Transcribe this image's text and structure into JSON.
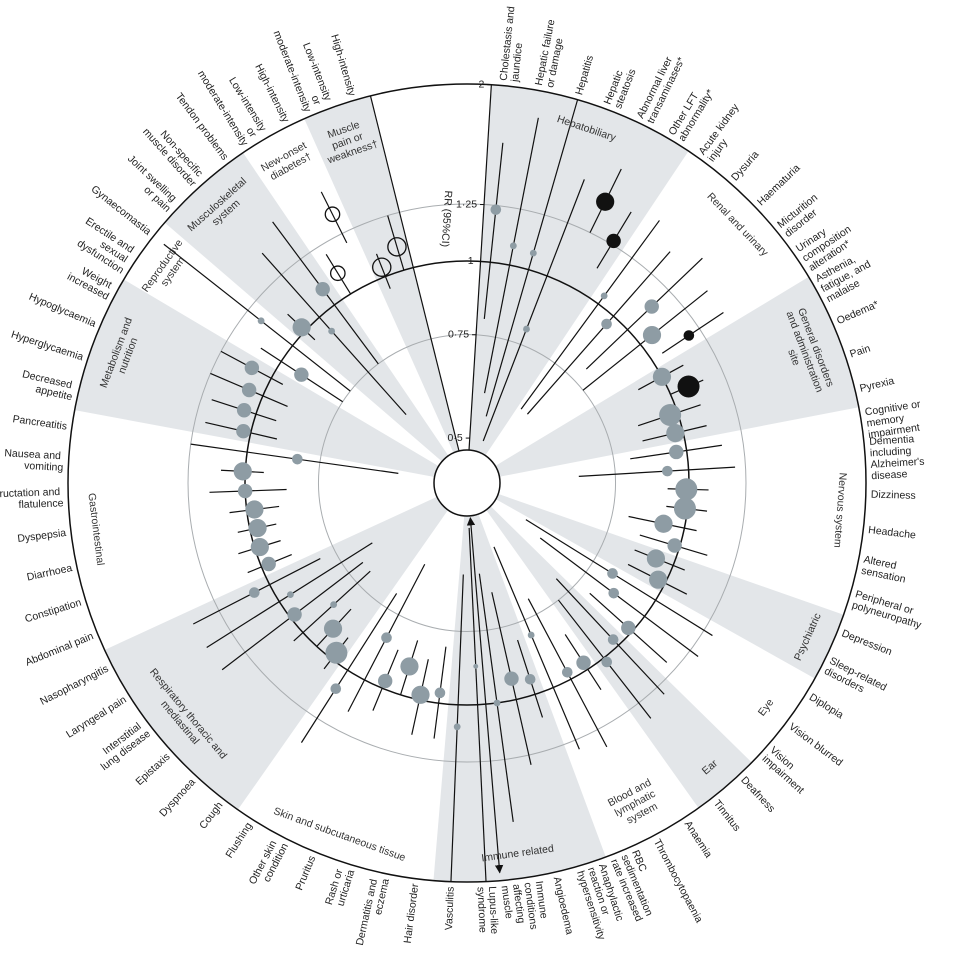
{
  "chart_data": {
    "type": "radial-forest",
    "axis_label": "RR (95%CI)",
    "log_scale": true,
    "rlim": [
      0.5,
      2
    ],
    "rticks": [
      {
        "value": 0.5,
        "label": "0·5"
      },
      {
        "value": 0.75,
        "label": "0·75"
      },
      1,
      {
        "value": 1.25,
        "label": "1·25"
      },
      2
    ],
    "reference_line": 1,
    "shade_color": "#e3e6e9",
    "groups": [
      {
        "name": "Hepatobiliary",
        "shaded": true,
        "outcomes": [
          {
            "name": "Cholestasis and jaundice",
            "rr": 1.23,
            "lower": 0.8,
            "upper": 1.6,
            "weight": 2,
            "color": "#8e9ca4"
          },
          {
            "name": "Hepatic failure or damage",
            "rr": 1.08,
            "lower": 0.6,
            "upper": 1.8,
            "weight": 1,
            "color": "#8e9ca4"
          },
          {
            "name": "Hepatitis",
            "rr": 1.07,
            "lower": 0.55,
            "upper": 2,
            "weight": 1,
            "color": "#8e9ca4"
          },
          {
            "name": "Hepatic steatosis",
            "rr": 0.8,
            "lower": 0.5,
            "upper": 1.5,
            "weight": 1,
            "color": "#8e9ca4"
          },
          {
            "name": "Abnormal liver transaminases*",
            "rr": 1.43,
            "lower": 1.25,
            "upper": 1.65,
            "weight": 4,
            "color": "#111111"
          },
          {
            "name": "Other LFT abnormality*",
            "rr": 1.27,
            "lower": 1.12,
            "upper": 1.45,
            "weight": 3,
            "color": "#111111"
          }
        ]
      },
      {
        "name": "Renal and urinary",
        "shaded": false,
        "outcomes": [
          {
            "name": "Acute kidney injury",
            "rr": 1.04,
            "lower": 0.6,
            "upper": 1.5,
            "weight": 1,
            "color": "#8e9ca4"
          },
          {
            "name": "Dysuria",
            "rr": 0.96,
            "lower": 0.6,
            "upper": 1.4,
            "weight": 2,
            "color": "#8e9ca4"
          },
          {
            "name": "Haematuria",
            "rr": 1.14,
            "lower": 0.8,
            "upper": 1.5,
            "weight": 3,
            "color": "#8e9ca4"
          },
          {
            "name": "Micturition disorder",
            "rr": 1.06,
            "lower": 0.75,
            "upper": 1.4,
            "weight": 4,
            "color": "#8e9ca4"
          },
          {
            "name": "Urinary composition alteration*",
            "rr": 1.19,
            "lower": 1.05,
            "upper": 1.4,
            "weight": 2,
            "color": "#111111"
          }
        ]
      },
      {
        "name": "General disorders and administration site",
        "shaded": true,
        "outcomes": [
          {
            "name": "Asthenia, fatigue, and malaise",
            "rr": 1.0,
            "lower": 0.9,
            "upper": 1.1,
            "weight": 4,
            "color": "#8e9ca4"
          },
          {
            "name": "Oedema*",
            "rr": 1.08,
            "lower": 1.0,
            "upper": 1.15,
            "weight": 5,
            "color": "#111111"
          },
          {
            "name": "Pain",
            "rr": 0.97,
            "lower": 0.85,
            "upper": 1.1,
            "weight": 5,
            "color": "#8e9ca4"
          },
          {
            "name": "Pyrexia",
            "rr": 0.97,
            "lower": 0.85,
            "upper": 1.1,
            "weight": 4,
            "color": "#8e9ca4"
          }
        ]
      },
      {
        "name": "Nervous system",
        "shaded": false,
        "outcomes": [
          {
            "name": "Cognitive or memory impairment",
            "rr": 0.96,
            "lower": 0.8,
            "upper": 1.15,
            "weight": 3,
            "color": "#8e9ca4"
          },
          {
            "name": "Dementia including Alzheimer's disease",
            "rr": 0.92,
            "lower": 0.65,
            "upper": 1.2,
            "weight": 2,
            "color": "#8e9ca4"
          },
          {
            "name": "Dizziness",
            "rr": 0.99,
            "lower": 0.92,
            "upper": 1.08,
            "weight": 5,
            "color": "#8e9ca4"
          },
          {
            "name": "Headache",
            "rr": 0.99,
            "lower": 0.92,
            "upper": 1.08,
            "weight": 5,
            "color": "#8e9ca4"
          },
          {
            "name": "Altered sensation",
            "rr": 0.92,
            "lower": 0.8,
            "upper": 1.05,
            "weight": 4,
            "color": "#8e9ca4"
          },
          {
            "name": "Peripheral or polyneuropathy",
            "rr": 0.98,
            "lower": 0.85,
            "upper": 1.12,
            "weight": 3,
            "color": "#8e9ca4"
          }
        ]
      },
      {
        "name": "Psychiatric",
        "shaded": true,
        "outcomes": [
          {
            "name": "Depression",
            "rr": 0.93,
            "lower": 0.85,
            "upper": 1.05,
            "weight": 4,
            "color": "#8e9ca4"
          },
          {
            "name": "Sleep-related disorders",
            "rr": 0.97,
            "lower": 0.85,
            "upper": 1.1,
            "weight": 4,
            "color": "#8e9ca4"
          }
        ]
      },
      {
        "name": "Eye",
        "shaded": false,
        "outcomes": [
          {
            "name": "Diplopia",
            "rr": 0.82,
            "lower": 0.55,
            "upper": 1.3,
            "weight": 2,
            "color": "#8e9ca4"
          },
          {
            "name": "Vision blurred",
            "rr": 0.86,
            "lower": 0.6,
            "upper": 1.3,
            "weight": 2,
            "color": "#8e9ca4"
          },
          {
            "name": "Vision impairment",
            "rr": 0.98,
            "lower": 0.8,
            "upper": 1.2,
            "weight": 3,
            "color": "#8e9ca4"
          }
        ]
      },
      {
        "name": "Ear",
        "shaded": true,
        "outcomes": [
          {
            "name": "Deafness",
            "rr": 0.97,
            "lower": 0.7,
            "upper": 1.3,
            "weight": 2,
            "color": "#8e9ca4"
          },
          {
            "name": "Tinnitus",
            "rr": 1.02,
            "lower": 0.75,
            "upper": 1.35,
            "weight": 2,
            "color": "#8e9ca4"
          }
        ]
      },
      {
        "name": "Blood and lymphatic system",
        "shaded": false,
        "outcomes": [
          {
            "name": "Anaemia",
            "rr": 0.97,
            "lower": 0.85,
            "upper": 1.1,
            "weight": 3,
            "color": "#8e9ca4"
          },
          {
            "name": "Thrombocytopaenia",
            "rr": 0.97,
            "lower": 0.7,
            "upper": 1.35,
            "weight": 2,
            "color": "#8e9ca4"
          },
          {
            "name": "RBC sedimentation rate increased",
            "rr": 0.8,
            "lower": 0.55,
            "upper": 1.3,
            "weight": 1,
            "color": "#8e9ca4"
          }
        ]
      },
      {
        "name": "Immune related",
        "shaded": true,
        "outcomes": [
          {
            "name": "Anaphylactic reaction or hypersensitivity",
            "rr": 0.94,
            "lower": 0.8,
            "upper": 1.1,
            "weight": 2,
            "color": "#8e9ca4"
          },
          {
            "name": "Angioedema",
            "rr": 0.92,
            "lower": 0.65,
            "upper": 1.3,
            "weight": 3,
            "color": "#8e9ca4"
          },
          {
            "name": "Immune conditions affecting muscle",
            "rr": 1.0,
            "lower": 0.6,
            "upper": 1.6,
            "weight": 1,
            "color": "#8e9ca4"
          },
          {
            "name": "Lupus-like syndrome",
            "rr": 0.86,
            "lower": 0.5,
            "upper": 2,
            "weight": 0.5,
            "color": "#8e9ca4"
          },
          {
            "name": "Vasculitis",
            "rr": 1.09,
            "lower": 0.6,
            "upper": 2,
            "weight": 1,
            "color": "#8e9ca4"
          }
        ]
      },
      {
        "name": "Skin and subcutaneous tissue",
        "shaded": false,
        "outcomes": [
          {
            "name": "Hair disorder",
            "rr": 0.96,
            "lower": 0.8,
            "upper": 1.15,
            "weight": 2,
            "color": "#8e9ca4"
          },
          {
            "name": "Dermatitis and eczema",
            "rr": 0.98,
            "lower": 0.85,
            "upper": 1.15,
            "weight": 4,
            "color": "#8e9ca4"
          },
          {
            "name": "Rash or urticaria",
            "rr": 0.89,
            "lower": 0.8,
            "upper": 1.0,
            "weight": 4,
            "color": "#8e9ca4"
          },
          {
            "name": "Pruritus",
            "rr": 0.97,
            "lower": 0.85,
            "upper": 1.1,
            "weight": 3,
            "color": "#8e9ca4"
          },
          {
            "name": "Other skin condition",
            "rr": 0.83,
            "lower": 0.6,
            "upper": 1.15,
            "weight": 2,
            "color": "#8e9ca4"
          },
          {
            "name": "Flushing",
            "rr": 1.09,
            "lower": 0.7,
            "upper": 1.4,
            "weight": 2,
            "color": "#8e9ca4"
          }
        ]
      },
      {
        "name": "Respiratory thoracic and mediastinal",
        "shaded": true,
        "outcomes": [
          {
            "name": "Cough",
            "rr": 0.97,
            "lower": 0.9,
            "upper": 1.05,
            "weight": 5,
            "color": "#8e9ca4"
          },
          {
            "name": "Dyspnoea",
            "rr": 0.91,
            "lower": 0.82,
            "upper": 1.0,
            "weight": 4,
            "color": "#8e9ca4"
          },
          {
            "name": "Epistaxis",
            "rr": 0.85,
            "lower": 0.7,
            "upper": 1.05,
            "weight": 1,
            "color": "#8e9ca4"
          },
          {
            "name": "Interstitial lung disease",
            "rr": 0.98,
            "lower": 0.7,
            "upper": 1.4,
            "weight": 3,
            "color": "#8e9ca4"
          },
          {
            "name": "Laryngeal pain",
            "rr": 0.95,
            "lower": 0.65,
            "upper": 1.4,
            "weight": 1,
            "color": "#8e9ca4"
          },
          {
            "name": "Nasopharyngitis",
            "rr": 1.07,
            "lower": 0.8,
            "upper": 1.4,
            "weight": 2,
            "color": "#8e9ca4"
          }
        ]
      },
      {
        "name": "Gastrointestinal",
        "shaded": false,
        "outcomes": [
          {
            "name": "Abdominal pain",
            "rr": 0.97,
            "lower": 0.88,
            "upper": 1.06,
            "weight": 3,
            "color": "#8e9ca4"
          },
          {
            "name": "Constipation",
            "rr": 0.98,
            "lower": 0.9,
            "upper": 1.07,
            "weight": 4,
            "color": "#8e9ca4"
          },
          {
            "name": "Diarrhoea",
            "rr": 0.97,
            "lower": 0.9,
            "upper": 1.05,
            "weight": 4,
            "color": "#8e9ca4"
          },
          {
            "name": "Dyspepsia",
            "rr": 0.97,
            "lower": 0.88,
            "upper": 1.07,
            "weight": 4,
            "color": "#8e9ca4"
          },
          {
            "name": "Eructation and flatulence",
            "rr": 1.0,
            "lower": 0.85,
            "upper": 1.15,
            "weight": 3,
            "color": "#8e9ca4"
          },
          {
            "name": "Nausea and vomiting",
            "rr": 1.01,
            "lower": 0.93,
            "upper": 1.1,
            "weight": 4,
            "color": "#8e9ca4"
          },
          {
            "name": "Pancreatitis",
            "rr": 0.82,
            "lower": 0.55,
            "upper": 1.25,
            "weight": 2,
            "color": "#8e9ca4"
          }
        ]
      },
      {
        "name": "Metabolism and nutrition",
        "shaded": true,
        "outcomes": [
          {
            "name": "Decreased appetite",
            "rr": 1.03,
            "lower": 0.9,
            "upper": 1.2,
            "weight": 3,
            "color": "#8e9ca4"
          },
          {
            "name": "Hyperglycaemia",
            "rr": 1.05,
            "lower": 0.92,
            "upper": 1.2,
            "weight": 3,
            "color": "#8e9ca4"
          },
          {
            "name": "Hypoglycaemia",
            "rr": 1.06,
            "lower": 0.9,
            "upper": 1.25,
            "weight": 3,
            "color": "#8e9ca4"
          },
          {
            "name": "Weight increased",
            "rr": 1.09,
            "lower": 0.95,
            "upper": 1.25,
            "weight": 3,
            "color": "#8e9ca4"
          }
        ]
      },
      {
        "name": "Reproductive system",
        "shaded": false,
        "outcomes": [
          {
            "name": "Erectile and sexual dysfunction",
            "rr": 0.91,
            "lower": 0.75,
            "upper": 1.1,
            "weight": 3,
            "color": "#8e9ca4"
          },
          {
            "name": "Gynaecomastia",
            "rr": 1.17,
            "lower": 0.75,
            "upper": 1.9,
            "weight": 1,
            "color": "#8e9ca4"
          }
        ]
      },
      {
        "name": "Musculoskeletal system",
        "shaded": true,
        "outcomes": [
          {
            "name": "Joint swelling or pain",
            "rr": 1.02,
            "lower": 0.95,
            "upper": 1.1,
            "weight": 4,
            "color": "#8e9ca4"
          },
          {
            "name": "Non-specific muscle disorder",
            "rr": 0.93,
            "lower": 0.6,
            "upper": 1.4,
            "weight": 1,
            "color": "#8e9ca4"
          },
          {
            "name": "Tendon problems",
            "rr": 1.08,
            "lower": 0.75,
            "upper": 1.5,
            "weight": 3,
            "color": "#8e9ca4"
          }
        ]
      },
      {
        "name": "New-onset diabetes†",
        "shaded": false,
        "outcomes": [
          {
            "name": "Low-intensity or moderate-intensity",
            "rr": 1.1,
            "lower": 1.0,
            "upper": 1.2,
            "weight": 3,
            "color": "none"
          },
          {
            "name": "High-intensity",
            "rr": 1.36,
            "lower": 1.2,
            "upper": 1.5,
            "weight": 3,
            "color": "none"
          }
        ]
      },
      {
        "name": "Muscle pain or weakness†",
        "shaded": true,
        "outcomes": [
          {
            "name": "Low-intensity or moderate-intensity",
            "rr": 1.04,
            "lower": 0.95,
            "upper": 1.1,
            "weight": 4,
            "color": "none"
          },
          {
            "name": "High-intensity",
            "rr": 1.1,
            "lower": 1.0,
            "upper": 1.25,
            "weight": 4,
            "color": "none"
          }
        ]
      }
    ]
  }
}
